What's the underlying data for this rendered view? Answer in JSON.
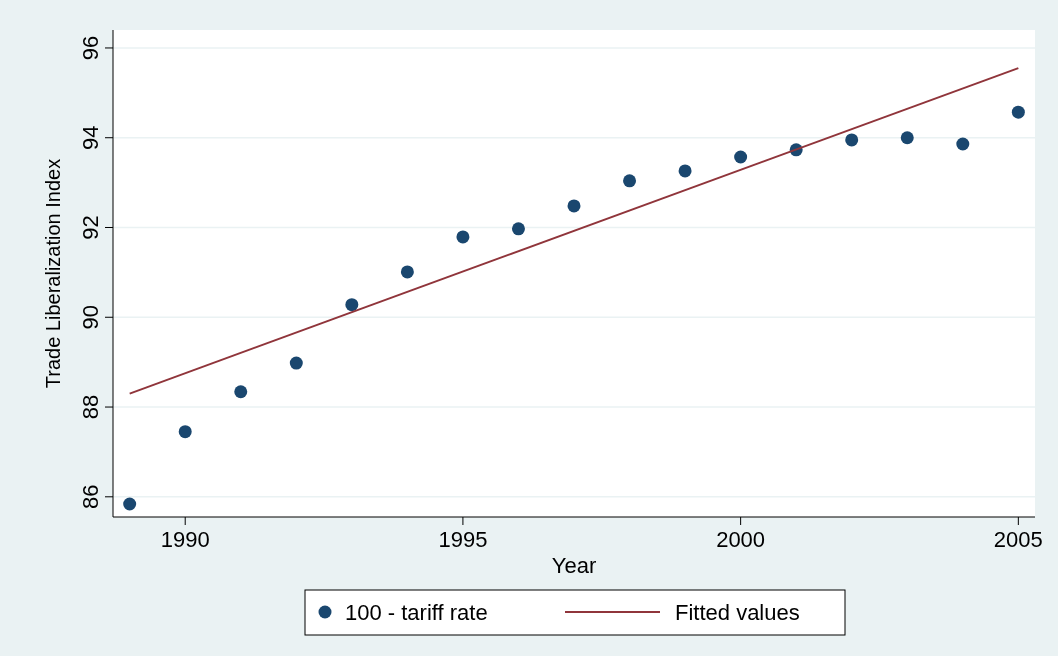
{
  "chart_data": {
    "type": "scatter",
    "xlabel": "Year",
    "ylabel": "Trade Liberalization Index",
    "x": [
      1989,
      1990,
      1991,
      1992,
      1993,
      1994,
      1995,
      1996,
      1997,
      1998,
      1999,
      2000,
      2001,
      2002,
      2003,
      2004,
      2005
    ],
    "series": [
      {
        "name": "100 - tariff rate",
        "marker": "circle",
        "color": "#1a476f",
        "values": [
          85.84,
          87.45,
          88.34,
          88.98,
          90.28,
          91.01,
          91.79,
          91.97,
          92.48,
          93.04,
          93.26,
          93.57,
          93.73,
          93.95,
          94.0,
          93.86,
          94.57
        ]
      },
      {
        "name": "Fitted values",
        "type": "line",
        "marker": "none",
        "color": "#90353b",
        "x": [
          1989,
          2005
        ],
        "values": [
          88.3,
          95.55
        ]
      }
    ],
    "xlim": [
      1988.7,
      2005.3
    ],
    "xticks": [
      1990,
      1995,
      2000,
      2005
    ],
    "ylim": [
      85.55,
      96.4
    ],
    "yticks": [
      86,
      88,
      90,
      92,
      94,
      96
    ],
    "grid": "y",
    "legend": "bottom",
    "line_style": "solid"
  }
}
